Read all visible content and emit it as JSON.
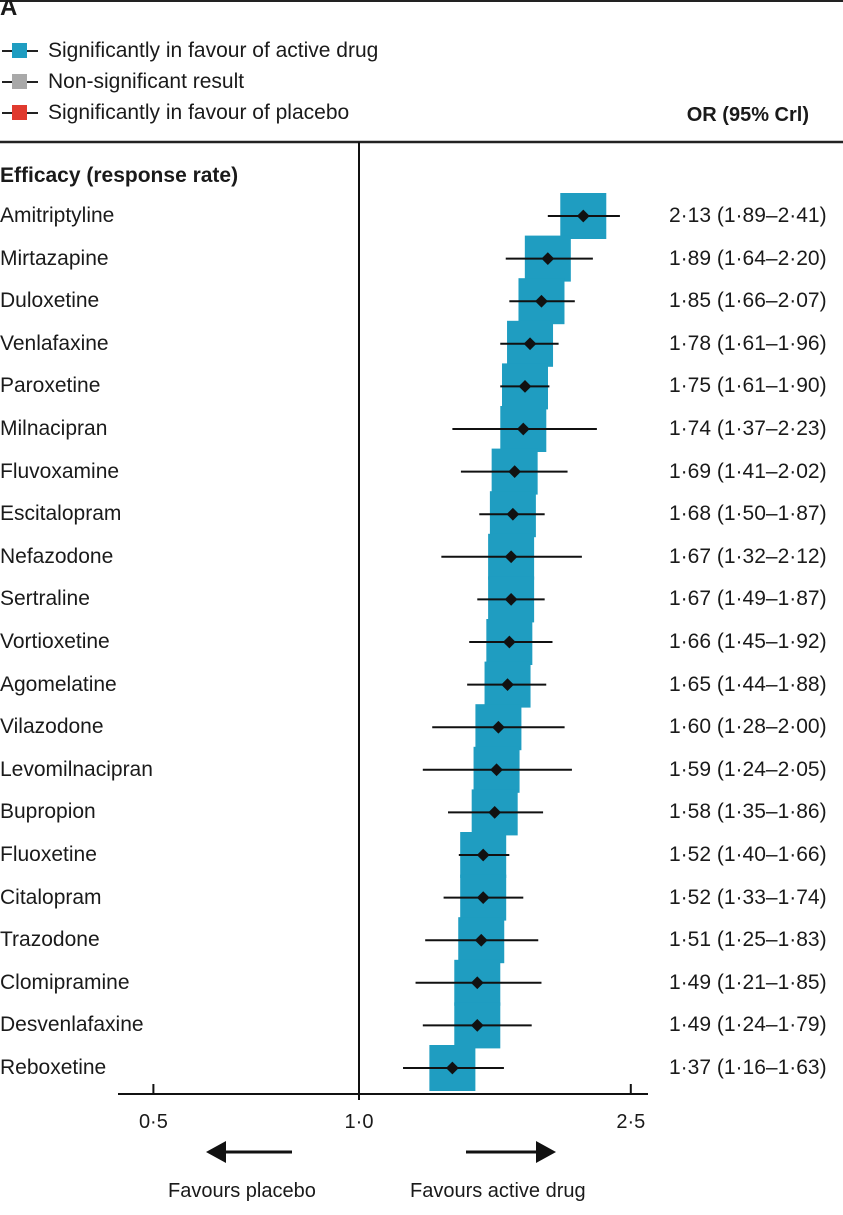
{
  "panel_label": "A",
  "legend": [
    {
      "label": "Significantly in favour of active drug",
      "color": "#1f9dc1"
    },
    {
      "label": "Non-significant result",
      "color": "#a9a9a9"
    },
    {
      "label": "Significantly in favour of placebo",
      "color": "#e03a2e"
    }
  ],
  "column_header": "OR (95% Crl)",
  "section_title": "Efficacy (response rate)",
  "favours_left": "Favours placebo",
  "favours_right": "Favours active drug",
  "chart_data": {
    "type": "forest",
    "scale": "log",
    "x_ticks": [
      {
        "value": 0.5,
        "label": "0·5"
      },
      {
        "value": 1.0,
        "label": "1·0"
      },
      {
        "value": 2.5,
        "label": "2·5"
      }
    ],
    "reference_line": 1.0,
    "marker_color": "#1f9dc1",
    "rows": [
      {
        "name": "Amitriptyline",
        "or": 2.13,
        "lo": 1.89,
        "hi": 2.41,
        "text": "2·13 (1·89–2·41)"
      },
      {
        "name": "Mirtazapine",
        "or": 1.89,
        "lo": 1.64,
        "hi": 2.2,
        "text": "1·89 (1·64–2·20)"
      },
      {
        "name": "Duloxetine",
        "or": 1.85,
        "lo": 1.66,
        "hi": 2.07,
        "text": "1·85 (1·66–2·07)"
      },
      {
        "name": "Venlafaxine",
        "or": 1.78,
        "lo": 1.61,
        "hi": 1.96,
        "text": "1·78 (1·61–1·96)"
      },
      {
        "name": "Paroxetine",
        "or": 1.75,
        "lo": 1.61,
        "hi": 1.9,
        "text": "1·75 (1·61–1·90)"
      },
      {
        "name": "Milnacipran",
        "or": 1.74,
        "lo": 1.37,
        "hi": 2.23,
        "text": "1·74 (1·37–2·23)"
      },
      {
        "name": "Fluvoxamine",
        "or": 1.69,
        "lo": 1.41,
        "hi": 2.02,
        "text": "1·69 (1·41–2·02)"
      },
      {
        "name": "Escitalopram",
        "or": 1.68,
        "lo": 1.5,
        "hi": 1.87,
        "text": "1·68 (1·50–1·87)"
      },
      {
        "name": "Nefazodone",
        "or": 1.67,
        "lo": 1.32,
        "hi": 2.12,
        "text": "1·67 (1·32–2·12)"
      },
      {
        "name": "Sertraline",
        "or": 1.67,
        "lo": 1.49,
        "hi": 1.87,
        "text": "1·67 (1·49–1·87)"
      },
      {
        "name": "Vortioxetine",
        "or": 1.66,
        "lo": 1.45,
        "hi": 1.92,
        "text": "1·66 (1·45–1·92)"
      },
      {
        "name": "Agomelatine",
        "or": 1.65,
        "lo": 1.44,
        "hi": 1.88,
        "text": "1·65 (1·44–1·88)"
      },
      {
        "name": "Vilazodone",
        "or": 1.6,
        "lo": 1.28,
        "hi": 2.0,
        "text": "1·60 (1·28–2·00)"
      },
      {
        "name": "Levomilnacipran",
        "or": 1.59,
        "lo": 1.24,
        "hi": 2.05,
        "text": "1·59 (1·24–2·05)"
      },
      {
        "name": "Bupropion",
        "or": 1.58,
        "lo": 1.35,
        "hi": 1.86,
        "text": "1·58 (1·35–1·86)"
      },
      {
        "name": "Fluoxetine",
        "or": 1.52,
        "lo": 1.4,
        "hi": 1.66,
        "text": "1·52 (1·40–1·66)"
      },
      {
        "name": "Citalopram",
        "or": 1.52,
        "lo": 1.33,
        "hi": 1.74,
        "text": "1·52 (1·33–1·74)"
      },
      {
        "name": "Trazodone",
        "or": 1.51,
        "lo": 1.25,
        "hi": 1.83,
        "text": "1·51 (1·25–1·83)"
      },
      {
        "name": "Clomipramine",
        "or": 1.49,
        "lo": 1.21,
        "hi": 1.85,
        "text": "1·49 (1·21–1·85)"
      },
      {
        "name": "Desvenlafaxine",
        "or": 1.49,
        "lo": 1.24,
        "hi": 1.79,
        "text": "1·49 (1·24–1·79)"
      },
      {
        "name": "Reboxetine",
        "or": 1.37,
        "lo": 1.16,
        "hi": 1.63,
        "text": "1·37 (1·16–1·63)"
      }
    ]
  }
}
